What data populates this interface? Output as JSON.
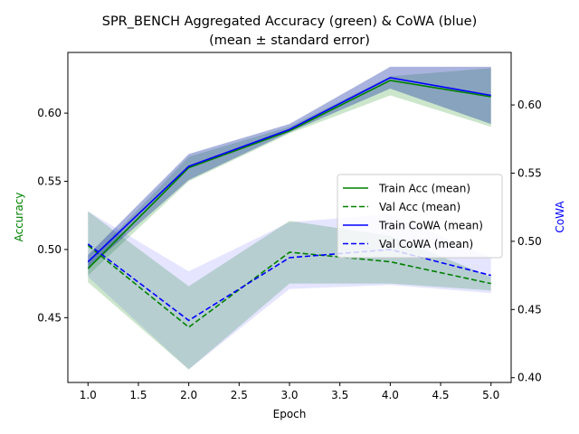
{
  "chart_data": {
    "type": "line",
    "title": "SPR_BENCH Aggregated Accuracy (green) & CoWA (blue)",
    "subtitle": "(mean ± standard error)",
    "xlabel": "Epoch",
    "ylabel_left": "Accuracy",
    "ylabel_right": "CoWA",
    "x": [
      1,
      2,
      3,
      4,
      5
    ],
    "xlim": [
      0.8,
      5.2
    ],
    "xticks": [
      1.0,
      1.5,
      2.0,
      2.5,
      3.0,
      3.5,
      4.0,
      4.5,
      5.0
    ],
    "xtick_labels": [
      "1.0",
      "1.5",
      "2.0",
      "2.5",
      "3.0",
      "3.5",
      "4.0",
      "4.5",
      "5.0"
    ],
    "ylim_left": [
      0.4025,
      0.6445
    ],
    "yticks_left": [
      0.45,
      0.5,
      0.55,
      0.6
    ],
    "ytick_labels_left": [
      "0.45",
      "0.50",
      "0.55",
      "0.60"
    ],
    "ylim_right": [
      0.3965,
      0.6385
    ],
    "yticks_right": [
      0.4,
      0.45,
      0.5,
      0.55,
      0.6
    ],
    "ytick_labels_right": [
      "0.40",
      "0.45",
      "0.50",
      "0.55",
      "0.60"
    ],
    "grid": false,
    "legend_position": "center-right",
    "colors": {
      "accuracy": "#008000",
      "cowa": "#0000ff",
      "label_left": "#008000",
      "label_right": "#0000ff"
    },
    "series": [
      {
        "name": "Train Acc (mean)",
        "axis": "left",
        "style": "solid",
        "color": "#008000",
        "values": [
          0.486,
          0.56,
          0.587,
          0.624,
          0.612
        ],
        "lower": [
          0.481,
          0.55,
          0.585,
          0.613,
          0.59
        ],
        "upper": [
          0.491,
          0.568,
          0.59,
          0.627,
          0.633
        ]
      },
      {
        "name": "Val Acc (mean)",
        "axis": "left",
        "style": "dashed",
        "color": "#008000",
        "values": [
          0.503,
          0.443,
          0.498,
          0.491,
          0.475
        ],
        "lower": [
          0.476,
          0.412,
          0.475,
          0.475,
          0.47
        ],
        "upper": [
          0.528,
          0.473,
          0.521,
          0.51,
          0.48
        ]
      },
      {
        "name": "Train CoWA (mean)",
        "axis": "right",
        "style": "solid",
        "color": "#0000ff",
        "values": [
          0.485,
          0.555,
          0.582,
          0.62,
          0.607
        ],
        "lower": [
          0.48,
          0.545,
          0.58,
          0.612,
          0.586
        ],
        "upper": [
          0.49,
          0.564,
          0.586,
          0.628,
          0.628
        ]
      },
      {
        "name": "Val CoWA (mean)",
        "axis": "right",
        "style": "dashed",
        "color": "#0000ff",
        "values": [
          0.498,
          0.442,
          0.488,
          0.494,
          0.475
        ],
        "lower": [
          0.474,
          0.406,
          0.465,
          0.468,
          0.462
        ],
        "upper": [
          0.522,
          0.478,
          0.514,
          0.52,
          0.488
        ]
      }
    ]
  }
}
